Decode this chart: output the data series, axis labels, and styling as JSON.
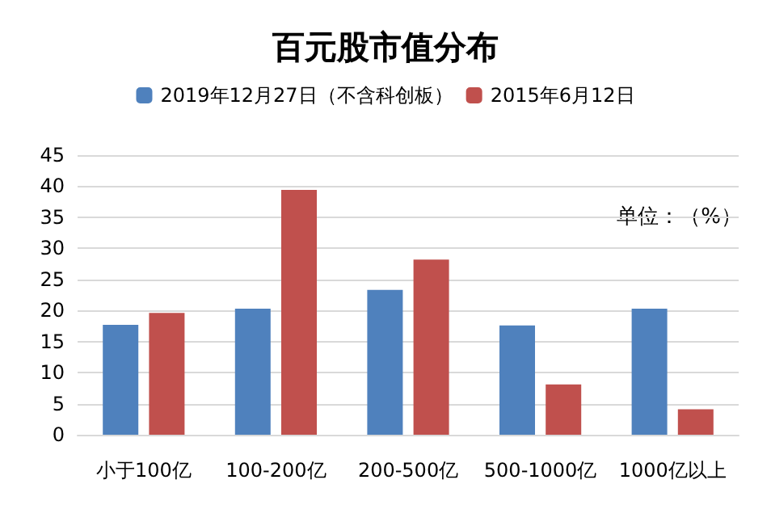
{
  "chart_data": {
    "type": "bar",
    "title": "百元股市值分布",
    "categories": [
      "小于100亿",
      "100-200亿",
      "200-500亿",
      "500-1000亿",
      "1000亿以上"
    ],
    "series": [
      {
        "name": "2019年12月27日（不含科创板）",
        "color": "#4f81bd",
        "values": [
          17.7,
          20.3,
          23.3,
          17.6,
          20.3
        ]
      },
      {
        "name": "2015年6月12日",
        "color": "#c0504d",
        "values": [
          19.6,
          39.4,
          28.2,
          8.1,
          4.1
        ]
      }
    ],
    "ylim": [
      0,
      45
    ],
    "yticks": [
      0,
      5,
      10,
      15,
      20,
      25,
      30,
      35,
      40,
      45
    ],
    "grid": "y",
    "legend": "top",
    "annotations": [
      "单位：（%）"
    ]
  }
}
